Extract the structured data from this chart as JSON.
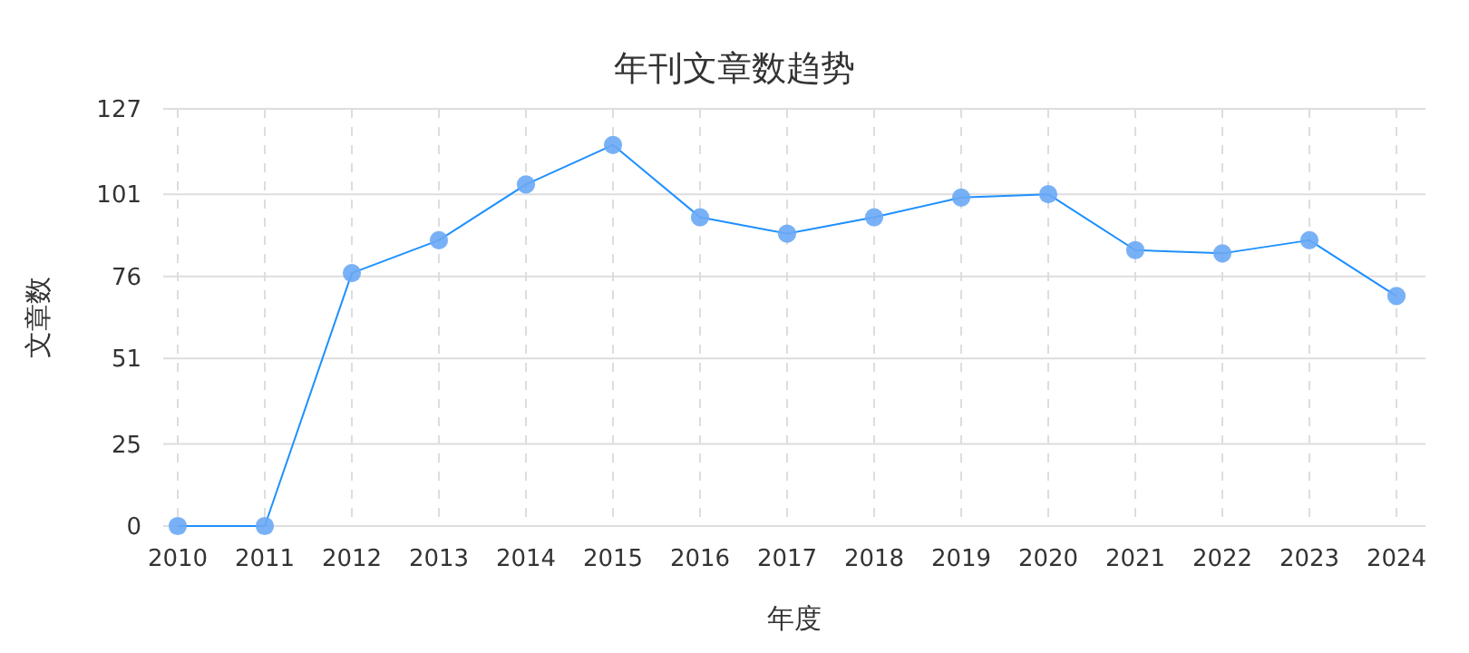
{
  "chart_data": {
    "type": "line",
    "title": "年刊文章数趋势",
    "xlabel": "年度",
    "ylabel": "文章数",
    "categories": [
      "2010",
      "2011",
      "2012",
      "2013",
      "2014",
      "2015",
      "2016",
      "2017",
      "2018",
      "2019",
      "2020",
      "2021",
      "2022",
      "2023",
      "2024"
    ],
    "series": [
      {
        "color": "#1e90ff",
        "values": [
          0,
          0,
          77,
          87,
          104,
          116,
          94,
          89,
          94,
          100,
          101,
          84,
          83,
          87,
          70
        ]
      }
    ],
    "ylim": [
      0,
      127
    ],
    "yticks": [
      0,
      25,
      51,
      76,
      101,
      127
    ],
    "grid": true,
    "marker": "circle",
    "line_style": "solid"
  }
}
